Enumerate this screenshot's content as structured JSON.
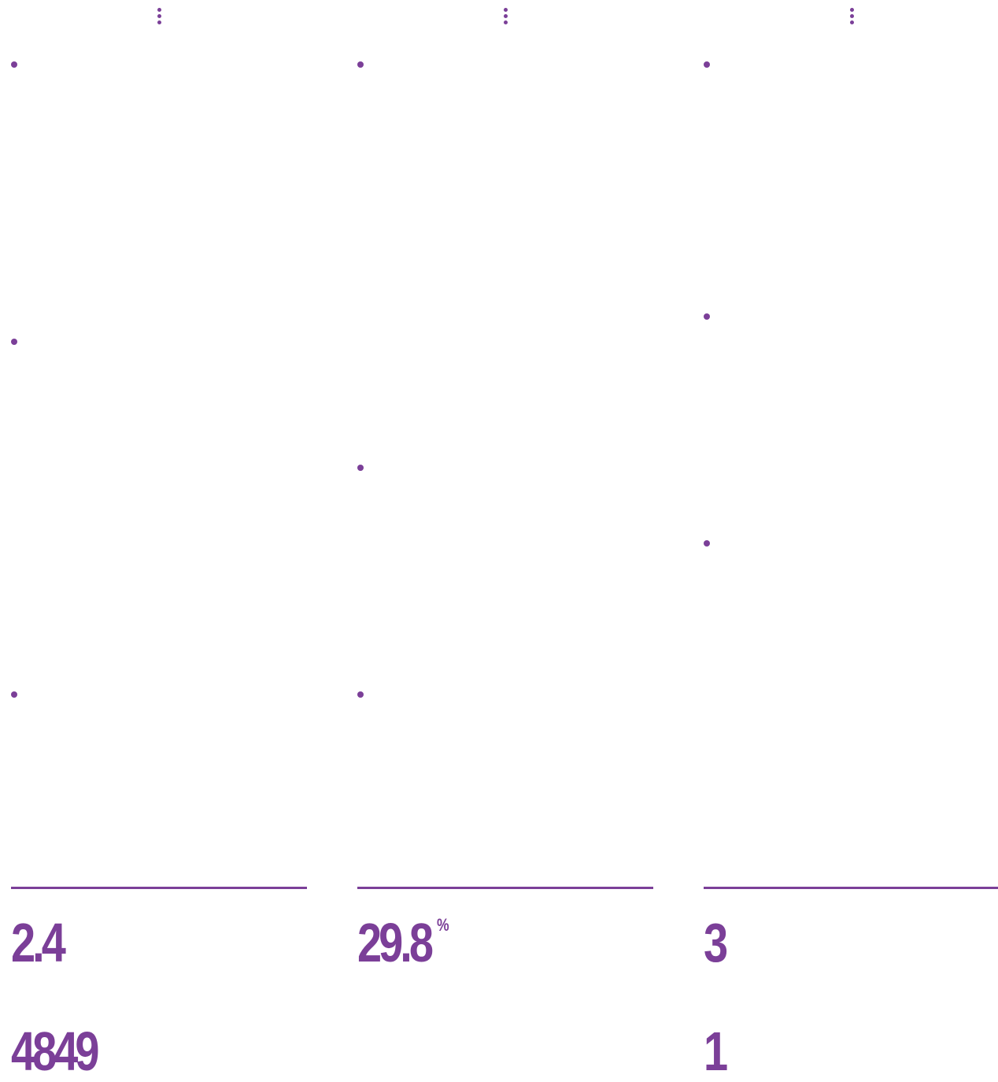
{
  "colors": {
    "accent": "#7b3f98"
  },
  "columns": [
    {
      "menu_icon": "more-vertical-icon",
      "stats": [
        {
          "value": "2.4",
          "unit": ""
        },
        {
          "value": "4849",
          "unit": ""
        }
      ]
    },
    {
      "menu_icon": "more-vertical-icon",
      "stats": [
        {
          "value": "29.8",
          "unit": "%"
        }
      ]
    },
    {
      "menu_icon": "more-vertical-icon",
      "stats": [
        {
          "value": "3",
          "unit": ""
        },
        {
          "value": "1",
          "unit": ""
        }
      ]
    }
  ]
}
